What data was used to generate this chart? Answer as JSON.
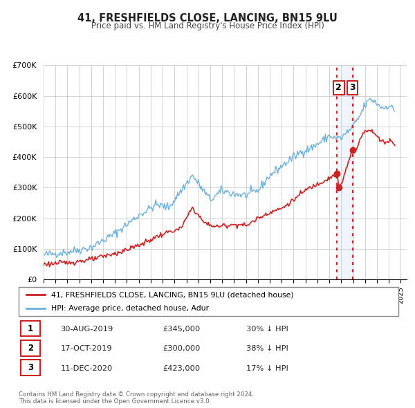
{
  "title": "41, FRESHFIELDS CLOSE, LANCING, BN15 9LU",
  "subtitle": "Price paid vs. HM Land Registry's House Price Index (HPI)",
  "hpi_color": "#6ab0de",
  "price_color": "#cc2222",
  "highlight_bg": "#ddeeff",
  "legend_label_price": "41, FRESHFIELDS CLOSE, LANCING, BN15 9LU (detached house)",
  "legend_label_hpi": "HPI: Average price, detached house, Adur",
  "footer": "Contains HM Land Registry data © Crown copyright and database right 2024.\nThis data is licensed under the Open Government Licence v3.0.",
  "transactions": [
    {
      "num": 1,
      "date": "30-AUG-2019",
      "price": "£345,000",
      "pct": "30% ↓ HPI",
      "year": 2019.66
    },
    {
      "num": 2,
      "date": "17-OCT-2019",
      "price": "£300,000",
      "pct": "38% ↓ HPI",
      "year": 2019.79
    },
    {
      "num": 3,
      "date": "11-DEC-2020",
      "price": "£423,000",
      "pct": "17% ↓ HPI",
      "year": 2020.94
    }
  ],
  "transaction_values": [
    345000,
    300000,
    423000
  ],
  "transaction_years": [
    2019.66,
    2019.79,
    2020.94
  ],
  "vline1_year": 2019.66,
  "vline2_year": 2020.94,
  "ylim": [
    0,
    700000
  ],
  "xlim_start": 1995,
  "xlim_end": 2025.5,
  "yticks": [
    0,
    100000,
    200000,
    300000,
    400000,
    500000,
    600000,
    700000
  ],
  "ytick_labels": [
    "£0",
    "£100K",
    "£200K",
    "£300K",
    "£400K",
    "£500K",
    "£600K",
    "£700K"
  ],
  "hpi_anchors_x": [
    1995.0,
    1997.0,
    1999.0,
    2001.0,
    2003.0,
    2004.5,
    2005.5,
    2007.5,
    2009.0,
    2010.0,
    2011.0,
    2012.0,
    2013.0,
    2014.0,
    2015.5,
    2016.5,
    2017.5,
    2018.5,
    2019.0,
    2019.5,
    2020.0,
    2020.5,
    2021.0,
    2021.5,
    2022.0,
    2022.5,
    2023.0,
    2023.5,
    2024.0,
    2024.5
  ],
  "hpi_anchors_y": [
    80000,
    90000,
    105000,
    150000,
    210000,
    245000,
    235000,
    340000,
    260000,
    290000,
    280000,
    275000,
    290000,
    340000,
    385000,
    415000,
    430000,
    455000,
    470000,
    462000,
    462000,
    480000,
    500000,
    530000,
    570000,
    590000,
    575000,
    560000,
    570000,
    550000
  ],
  "price_anchors_x": [
    1995.0,
    1997.0,
    1999.0,
    2001.5,
    2003.5,
    2004.5,
    2005.5,
    2006.5,
    2007.5,
    2008.5,
    2009.5,
    2010.5,
    2011.5,
    2012.0,
    2013.0,
    2014.0,
    2015.0,
    2016.0,
    2017.0,
    2018.0,
    2019.0,
    2019.5,
    2019.66,
    2019.79,
    2020.0,
    2020.94,
    2021.2,
    2021.8,
    2022.2,
    2022.8,
    2023.2,
    2023.8,
    2024.2,
    2024.5
  ],
  "price_anchors_y": [
    50000,
    55000,
    65000,
    90000,
    120000,
    140000,
    155000,
    165000,
    235000,
    185000,
    172000,
    178000,
    180000,
    175000,
    200000,
    220000,
    232000,
    260000,
    292000,
    312000,
    332000,
    342000,
    345000,
    300000,
    310000,
    423000,
    418000,
    480000,
    490000,
    478000,
    458000,
    448000,
    455000,
    443000
  ]
}
